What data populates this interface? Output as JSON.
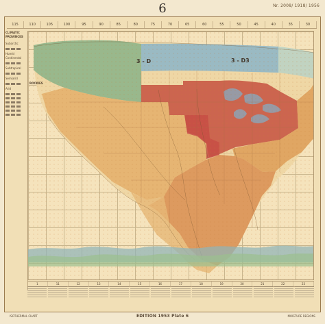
{
  "page": {
    "plate_number": "6",
    "corner_note": "Nr. 2008/ 1918/ 1956"
  },
  "top_scale": [
    "115",
    "110",
    "105",
    "100",
    "95",
    "90",
    "85",
    "80",
    "75",
    "70",
    "65",
    "60",
    "55",
    "50",
    "45",
    "40",
    "35",
    "30"
  ],
  "legend": {
    "heading": "CLIMATIC\nPROVINCES",
    "labels": [
      "Subarctic",
      "Humid Continental",
      "Subtropical",
      "Semiarid",
      "Arid"
    ]
  },
  "map": {
    "band_labels": [
      "3 - D",
      "3 - D3"
    ],
    "small_label": "ROCKIES",
    "colors": {
      "green": "#8fb58a",
      "blue": "#93b7c6",
      "red": "#c95b48",
      "orange": "#dd9d58",
      "pale": "#efd7a5"
    }
  },
  "bottom_scale": [
    "1",
    "11",
    "12",
    "13",
    "14",
    "15",
    "16",
    "17",
    "18",
    "19",
    "20",
    "21",
    "22",
    "23"
  ],
  "footer": {
    "left": "ISOTHERMAL CHART",
    "center": "EDITION 1953 Plate 6",
    "right": "MOISTURE REGIONS"
  }
}
